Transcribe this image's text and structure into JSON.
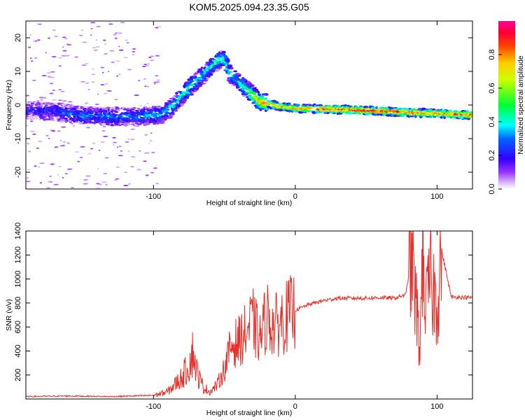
{
  "title": "KOM5.2025.094.23.35.G05",
  "chart_data": [
    {
      "type": "heatmap",
      "title": "KOM5.2025.094.23.35.G05",
      "xlabel": "Height of straight line (km)",
      "ylabel": "Frequency (Hz)",
      "xlim": [
        -190,
        125
      ],
      "ylim": [
        -25,
        25
      ],
      "xticks": [
        -100,
        0,
        100
      ],
      "yticks": [
        -20,
        -10,
        0,
        10,
        20
      ],
      "xtick_labels": [
        "-100",
        "0",
        "100"
      ],
      "ytick_labels": [
        "-20",
        "-10",
        "0",
        "10",
        "20"
      ],
      "grid": false,
      "colorbar": {
        "label": "Normalized spectral amplitude",
        "range": [
          0,
          1
        ],
        "ticks": [
          0.0,
          0.2,
          0.4,
          0.6,
          0.8
        ],
        "tick_labels": [
          "0.0",
          "0.2",
          "0.4",
          "0.6",
          "0.8"
        ],
        "colormap": [
          "#ffffff",
          "#cc99ff",
          "#8000ff",
          "#0000ff",
          "#00ffff",
          "#00ff00",
          "#ffff00",
          "#ff8000",
          "#ff0000",
          "#ff00a0"
        ]
      },
      "ridge_trace": {
        "x": [
          -190,
          -170,
          -150,
          -130,
          -110,
          -95,
          -85,
          -75,
          -65,
          -55,
          -50,
          -47,
          -45,
          -40,
          -35,
          -30,
          -25,
          -20,
          -10,
          0,
          20,
          40,
          60,
          80,
          100,
          125
        ],
        "y": [
          -1.5,
          -2.0,
          -3.0,
          -3.5,
          -3.5,
          -3.0,
          0.0,
          5.0,
          9.0,
          13.0,
          14.0,
          10.0,
          9.0,
          7.0,
          5.0,
          3.0,
          1.0,
          0.5,
          -0.5,
          -1.0,
          -1.2,
          -1.5,
          -1.8,
          -2.2,
          -2.5,
          -3.0
        ],
        "peak_amplitude": [
          0.2,
          0.25,
          0.3,
          0.3,
          0.3,
          0.35,
          0.4,
          0.45,
          0.4,
          0.45,
          0.5,
          0.45,
          0.4,
          0.35,
          0.5,
          0.6,
          0.75,
          0.8,
          0.75,
          0.8,
          0.9,
          0.95,
          0.95,
          0.9,
          0.85,
          0.9
        ]
      }
    },
    {
      "type": "line",
      "xlabel": "Height of straight line (km)",
      "ylabel": "SNR (v/v)",
      "xlim": [
        -190,
        125
      ],
      "ylim": [
        0,
        1400
      ],
      "xticks": [
        -100,
        0,
        100
      ],
      "yticks": [
        200,
        400,
        600,
        800,
        1000,
        1200,
        1400
      ],
      "xtick_labels": [
        "-100",
        "0",
        "100"
      ],
      "ytick_labels": [
        "200",
        "400",
        "600",
        "800",
        "1000",
        "1200",
        "1400"
      ],
      "grid": false,
      "color": "#e8302a",
      "series": [
        {
          "x": [
            -190,
            -160,
            -130,
            -100,
            -90,
            -85,
            -80,
            -75,
            -72,
            -70,
            -68,
            -65,
            -60,
            -55,
            -50,
            -45,
            -40,
            -35,
            -30,
            -25,
            -20,
            -15,
            -10,
            -5,
            0,
            10,
            20,
            30,
            40,
            50,
            60,
            70,
            78,
            82,
            85,
            88,
            90,
            92,
            95,
            100,
            103,
            110,
            125
          ],
          "y": [
            20,
            25,
            20,
            30,
            60,
            120,
            180,
            280,
            400,
            250,
            180,
            100,
            60,
            120,
            250,
            450,
            480,
            550,
            650,
            500,
            700,
            600,
            650,
            700,
            740,
            790,
            820,
            840,
            840,
            840,
            845,
            840,
            870,
            1200,
            800,
            400,
            1400,
            700,
            1000,
            800,
            1250,
            850,
            845
          ]
        }
      ]
    }
  ]
}
